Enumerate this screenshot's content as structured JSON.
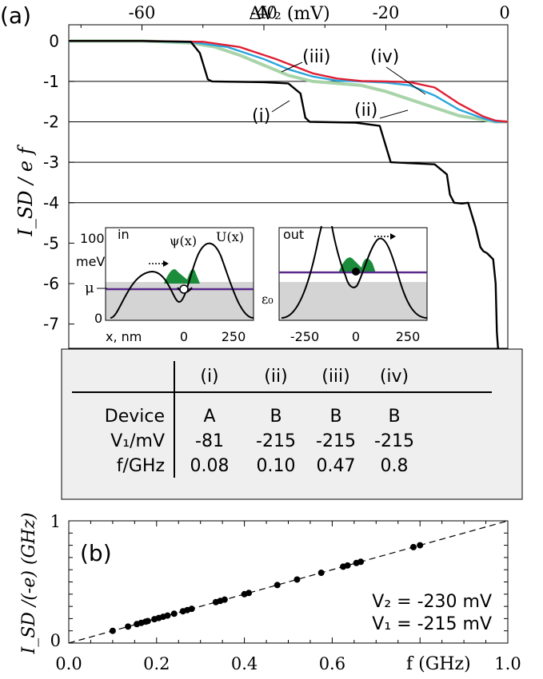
{
  "chart_data": [
    {
      "type": "line",
      "panel_label": "(a)",
      "top_xlabel": "ΔV₂ (mV)",
      "ylabel": "I_SD / e f",
      "top_xticks": [
        "-60",
        "-40",
        "-20",
        "0"
      ],
      "yticks": [
        "0",
        "-1",
        "-2",
        "-3",
        "-4",
        "-5",
        "-6",
        "-7"
      ],
      "xlim": [
        -72,
        0
      ],
      "ylim": [
        -7.6,
        0.4
      ],
      "series": [
        {
          "name": "(i)",
          "color": "#000000",
          "x": [
            -72,
            -60,
            -52,
            -50.5,
            -49.2,
            -48.5,
            -40,
            -36,
            -34,
            -33.2,
            -32.5,
            -25,
            -21,
            -20,
            -19.2,
            -12,
            -10,
            -9.5,
            -8.8,
            -7.5,
            -6.5,
            -5.3,
            -4.5,
            -4,
            -3.4,
            -2.4,
            -2,
            -1.8,
            -1.6
          ],
          "y": [
            0,
            0,
            -0.02,
            -0.3,
            -0.95,
            -1,
            -1.02,
            -1.05,
            -1.3,
            -1.9,
            -2,
            -2.02,
            -2.1,
            -2.6,
            -3,
            -3.05,
            -3.3,
            -3.8,
            -4,
            -4.02,
            -4,
            -4.6,
            -5.1,
            -5.2,
            -5.25,
            -5.4,
            -6,
            -7.2,
            -7.6
          ]
        },
        {
          "name": "(ii)",
          "color": "#a9d4a9",
          "x": [
            -72,
            -60,
            -52,
            -48,
            -44,
            -40,
            -36,
            -32,
            -28,
            -24,
            -20,
            -16,
            -12,
            -8,
            -4,
            -2,
            0
          ],
          "y": [
            0,
            0,
            -0.05,
            -0.15,
            -0.35,
            -0.6,
            -0.85,
            -1,
            -1.05,
            -1.1,
            -1.25,
            -1.45,
            -1.65,
            -1.85,
            -1.95,
            -2,
            -2
          ]
        },
        {
          "name": "(iii)",
          "color": "#2ba6de",
          "x": [
            -72,
            -60,
            -52,
            -46,
            -40,
            -36,
            -32,
            -28,
            -24,
            -20,
            -16,
            -12,
            -8,
            -4,
            -2,
            0
          ],
          "y": [
            0,
            0,
            -0.03,
            -0.15,
            -0.45,
            -0.7,
            -0.88,
            -0.98,
            -1,
            -1.03,
            -1.1,
            -1.35,
            -1.7,
            -1.92,
            -2,
            -2
          ]
        },
        {
          "name": "(iv)",
          "color": "#e02035",
          "x": [
            -72,
            -60,
            -50,
            -44,
            -38,
            -32,
            -28,
            -24,
            -20,
            -16,
            -12,
            -8,
            -4,
            -2,
            0
          ],
          "y": [
            0,
            0,
            -0.02,
            -0.15,
            -0.45,
            -0.8,
            -0.93,
            -0.99,
            -1,
            -1.02,
            -1.15,
            -1.55,
            -1.87,
            -1.97,
            -2
          ]
        }
      ],
      "hlines": [
        -1,
        -2,
        -3,
        -4
      ]
    },
    {
      "type": "scatter",
      "panel_label": "(b)",
      "xlabel": "f (GHz)",
      "ylabel": "I_SD /(-e) (GHz)",
      "xticks": [
        "0.0",
        "0.2",
        "0.4",
        "0.6",
        "1.0"
      ],
      "yticks": [
        "1",
        "0"
      ],
      "xlim": [
        0,
        1
      ],
      "ylim": [
        0,
        1
      ],
      "fit": "dashed y = x",
      "x": [
        0.1,
        0.135,
        0.155,
        0.165,
        0.175,
        0.18,
        0.195,
        0.205,
        0.215,
        0.225,
        0.24,
        0.26,
        0.27,
        0.28,
        0.335,
        0.345,
        0.355,
        0.4,
        0.41,
        0.475,
        0.52,
        0.575,
        0.625,
        0.635,
        0.655,
        0.665,
        0.785,
        0.8
      ],
      "y": [
        0.1,
        0.135,
        0.155,
        0.165,
        0.175,
        0.18,
        0.195,
        0.205,
        0.215,
        0.225,
        0.24,
        0.26,
        0.27,
        0.28,
        0.335,
        0.345,
        0.355,
        0.4,
        0.41,
        0.475,
        0.52,
        0.575,
        0.625,
        0.635,
        0.655,
        0.665,
        0.785,
        0.8
      ],
      "annotations": [
        "V₂ = -230 mV",
        "V₁ = -215 mV"
      ]
    }
  ],
  "insets": {
    "left": {
      "label": "in",
      "ylabel_value": "100",
      "ylabel_unit": "meV",
      "mu": "μ",
      "psi": "ψ(x)",
      "u": "U(x)",
      "eps": "ε₀",
      "x_label": "x, nm",
      "y_zero": "0",
      "xticks": [
        "0",
        "250"
      ]
    },
    "right": {
      "label": "out",
      "xticks": [
        "-250",
        "0",
        "250"
      ]
    }
  },
  "table": {
    "headers": [
      "(i)",
      "(ii)",
      "(iii)",
      "(iv)"
    ],
    "rows": [
      {
        "label": "Device",
        "values": [
          "A",
          "B",
          "B",
          "B"
        ]
      },
      {
        "label": "V₁/mV",
        "values": [
          "-81",
          "-215",
          "-215",
          "-215"
        ]
      },
      {
        "label": "f/GHz",
        "values": [
          "0.08",
          "0.10",
          "0.47",
          "0.8"
        ]
      }
    ]
  }
}
